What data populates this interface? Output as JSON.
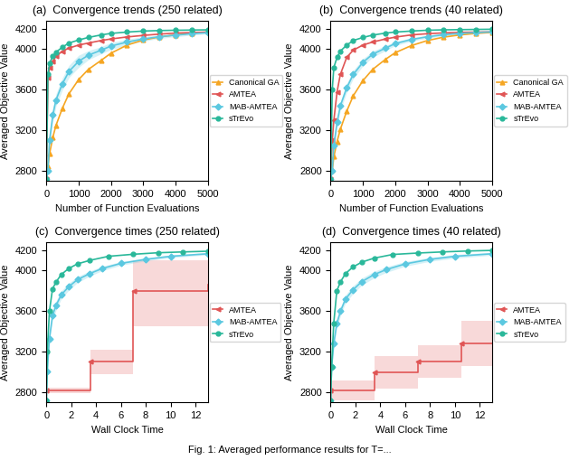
{
  "title": "Fig. 1: Averaged performance results for T=...",
  "chart_data": [
    {
      "type": "line",
      "title": "(a)  Convergence trends (250 related)",
      "x_label": "Number of Function Evaluations",
      "y_label": "Averaged Objective Value",
      "xlim": [
        0,
        5000
      ],
      "ylim": [
        2700,
        4280
      ],
      "xticks": [
        0,
        1000,
        2000,
        3000,
        4000,
        5000
      ],
      "yticks": [
        2800,
        3200,
        3600,
        4000,
        4200
      ],
      "legend": "right",
      "x": [
        0,
        50,
        100,
        200,
        300,
        500,
        700,
        1000,
        1300,
        1700,
        2000,
        2500,
        3000,
        3500,
        4000,
        4500,
        5000
      ],
      "series": [
        {
          "name": "Canonical GA",
          "color": "#f5a623",
          "marker": "triangle_up",
          "values": [
            2720,
            2850,
            2970,
            3130,
            3250,
            3420,
            3560,
            3700,
            3800,
            3890,
            3960,
            4040,
            4090,
            4120,
            4140,
            4158,
            4168
          ]
        },
        {
          "name": "AMTEA",
          "color": "#e05555",
          "marker": "triangle_left",
          "values": [
            2720,
            3720,
            3820,
            3880,
            3930,
            3980,
            4010,
            4040,
            4060,
            4085,
            4100,
            4120,
            4135,
            4148,
            4158,
            4163,
            4168
          ]
        },
        {
          "name": "MAB-AMTEA",
          "color": "#5bc8e0",
          "marker": "diamond",
          "values": [
            2720,
            2800,
            3100,
            3350,
            3500,
            3660,
            3780,
            3880,
            3940,
            3990,
            4030,
            4070,
            4100,
            4122,
            4138,
            4152,
            4162
          ],
          "lower": [
            2710,
            2780,
            3050,
            3280,
            3440,
            3600,
            3720,
            3820,
            3895,
            3955,
            3995,
            4042,
            4078,
            4105,
            4122,
            4138,
            4150
          ],
          "upper": [
            2730,
            2820,
            3150,
            3420,
            3560,
            3720,
            3840,
            3940,
            3985,
            4025,
            4065,
            4098,
            4122,
            4139,
            4154,
            4166,
            4174
          ]
        },
        {
          "name": "sTrEvo",
          "color": "#2ab89a",
          "marker": "circle",
          "values": [
            2720,
            3750,
            3860,
            3930,
            3970,
            4020,
            4060,
            4090,
            4115,
            4140,
            4155,
            4168,
            4178,
            4183,
            4186,
            4188,
            4190
          ]
        }
      ]
    },
    {
      "type": "line",
      "title": "(b)  Convergence trends (40 related)",
      "x_label": "Number of Function Evaluations",
      "y_label": "Averaged Objective Value",
      "xlim": [
        0,
        5000
      ],
      "ylim": [
        2700,
        4280
      ],
      "xticks": [
        0,
        1000,
        2000,
        3000,
        4000,
        5000
      ],
      "yticks": [
        2800,
        3200,
        3600,
        4000,
        4200
      ],
      "legend": "right",
      "x": [
        0,
        50,
        100,
        200,
        300,
        500,
        700,
        1000,
        1300,
        1700,
        2000,
        2500,
        3000,
        3500,
        4000,
        4500,
        5000
      ],
      "series": [
        {
          "name": "Canonical GA",
          "color": "#f5a623",
          "marker": "triangle_up",
          "values": [
            2720,
            2810,
            2940,
            3090,
            3210,
            3390,
            3540,
            3690,
            3800,
            3900,
            3965,
            4035,
            4085,
            4118,
            4140,
            4155,
            4165
          ]
        },
        {
          "name": "AMTEA",
          "color": "#e05555",
          "marker": "triangle_left",
          "values": [
            2720,
            3100,
            3300,
            3580,
            3750,
            3920,
            3990,
            4040,
            4070,
            4100,
            4118,
            4140,
            4152,
            4160,
            4165,
            4168,
            4170
          ]
        },
        {
          "name": "MAB-AMTEA",
          "color": "#5bc8e0",
          "marker": "diamond",
          "values": [
            2720,
            2800,
            3050,
            3280,
            3440,
            3620,
            3750,
            3870,
            3950,
            4010,
            4055,
            4095,
            4122,
            4142,
            4155,
            4163,
            4170
          ],
          "lower": [
            2710,
            2775,
            3000,
            3230,
            3395,
            3575,
            3710,
            3835,
            3920,
            3985,
            4035,
            4078,
            4108,
            4130,
            4145,
            4155,
            4162
          ],
          "upper": [
            2730,
            2825,
            3100,
            3330,
            3485,
            3665,
            3790,
            3905,
            3980,
            4035,
            4075,
            4112,
            4136,
            4154,
            4165,
            4171,
            4178
          ]
        },
        {
          "name": "sTrEvo",
          "color": "#2ab89a",
          "marker": "circle",
          "values": [
            2720,
            3600,
            3820,
            3920,
            3980,
            4040,
            4085,
            4115,
            4138,
            4158,
            4168,
            4178,
            4186,
            4190,
            4192,
            4194,
            4196
          ]
        }
      ]
    },
    {
      "type": "line",
      "title": "(c)  Convergence times (250 related)",
      "x_label": "Wall Clock Time",
      "y_label": "Averaged Objective Value",
      "xlim": [
        0,
        13
      ],
      "ylim": [
        2700,
        4280
      ],
      "xticks": [
        0,
        2,
        4,
        6,
        8,
        10,
        12
      ],
      "yticks": [
        2800,
        3200,
        3600,
        4000,
        4200
      ],
      "legend": "right",
      "series": [
        {
          "name": "AMTEA",
          "color": "#e05555",
          "marker": "triangle_left",
          "type": "step",
          "x": [
            0.0,
            0.02,
            3.5,
            3.52,
            7.0,
            7.02,
            13.0
          ],
          "values": [
            2820,
            2820,
            2820,
            3100,
            3800,
            3800,
            3860
          ],
          "lower": [
            2790,
            2790,
            2790,
            2980,
            3450,
            3450,
            3520
          ],
          "upper": [
            2850,
            2850,
            2850,
            3220,
            4100,
            4100,
            4160
          ],
          "points_x": [
            0,
            3.52,
            7.02
          ],
          "points_values": [
            2820,
            3100,
            3800
          ]
        },
        {
          "name": "MAB-AMTEA",
          "color": "#5bc8e0",
          "marker": "diamond",
          "x": [
            0,
            0.08,
            0.25,
            0.5,
            0.8,
            1.2,
            1.8,
            2.5,
            3.5,
            4.5,
            6.0,
            8.0,
            10.0,
            13.0
          ],
          "values": [
            2720,
            3010,
            3330,
            3560,
            3660,
            3760,
            3840,
            3910,
            3970,
            4020,
            4070,
            4110,
            4140,
            4165
          ],
          "lower": [
            2710,
            2980,
            3290,
            3510,
            3615,
            3720,
            3805,
            3880,
            3945,
            3998,
            4052,
            4095,
            4126,
            4154
          ],
          "upper": [
            2730,
            3040,
            3370,
            3610,
            3705,
            3800,
            3875,
            3940,
            3995,
            4042,
            4088,
            4125,
            4154,
            4176
          ]
        },
        {
          "name": "sTrEvo",
          "color": "#2ab89a",
          "marker": "circle",
          "x": [
            0,
            0.08,
            0.25,
            0.5,
            0.8,
            1.2,
            1.8,
            2.5,
            3.5,
            5.0,
            7.0,
            9.0,
            11.0,
            13.0
          ],
          "values": [
            2720,
            3200,
            3600,
            3820,
            3890,
            3960,
            4020,
            4065,
            4100,
            4140,
            4160,
            4175,
            4183,
            4190
          ]
        }
      ]
    },
    {
      "type": "line",
      "title": "(d)  Convergence times (40 related)",
      "x_label": "Wall Clock Time",
      "y_label": "Averaged Objective Value",
      "xlim": [
        0,
        13
      ],
      "ylim": [
        2700,
        4280
      ],
      "xticks": [
        0,
        2,
        4,
        6,
        8,
        10,
        12
      ],
      "yticks": [
        2800,
        3200,
        3600,
        4000,
        4200
      ],
      "legend": "right",
      "series": [
        {
          "name": "AMTEA",
          "color": "#e05555",
          "marker": "triangle_left",
          "type": "step",
          "x": [
            0.0,
            0.02,
            3.5,
            3.52,
            7.0,
            7.02,
            10.5,
            10.52,
            13.0
          ],
          "values": [
            2820,
            2820,
            2820,
            3000,
            3000,
            3100,
            3100,
            3280,
            3280
          ],
          "lower": [
            2720,
            2720,
            2720,
            2840,
            2840,
            2940,
            2940,
            3060,
            3060
          ],
          "upper": [
            2920,
            2920,
            2920,
            3160,
            3160,
            3260,
            3260,
            3500,
            3500
          ],
          "points_x": [
            0,
            3.52,
            7.02,
            10.52
          ],
          "points_values": [
            2820,
            3000,
            3100,
            3280
          ]
        },
        {
          "name": "MAB-AMTEA",
          "color": "#5bc8e0",
          "marker": "diamond",
          "x": [
            0,
            0.08,
            0.25,
            0.5,
            0.8,
            1.2,
            1.8,
            2.5,
            3.5,
            4.5,
            6.0,
            8.0,
            10.0,
            13.0
          ],
          "values": [
            2720,
            3050,
            3280,
            3480,
            3600,
            3720,
            3810,
            3890,
            3960,
            4010,
            4065,
            4110,
            4140,
            4165
          ],
          "lower": [
            2710,
            3010,
            3235,
            3435,
            3558,
            3680,
            3772,
            3855,
            3928,
            3982,
            4042,
            4090,
            4122,
            4150
          ],
          "upper": [
            2730,
            3090,
            3325,
            3525,
            3642,
            3760,
            3848,
            3925,
            3992,
            4038,
            4088,
            4130,
            4158,
            4180
          ]
        },
        {
          "name": "sTrEvo",
          "color": "#2ab89a",
          "marker": "circle",
          "x": [
            0,
            0.08,
            0.25,
            0.5,
            0.8,
            1.2,
            1.8,
            2.5,
            3.5,
            5.0,
            7.0,
            9.0,
            11.0,
            13.0
          ],
          "values": [
            2720,
            3050,
            3480,
            3800,
            3890,
            3970,
            4035,
            4082,
            4122,
            4158,
            4172,
            4183,
            4192,
            4198
          ]
        }
      ]
    }
  ]
}
